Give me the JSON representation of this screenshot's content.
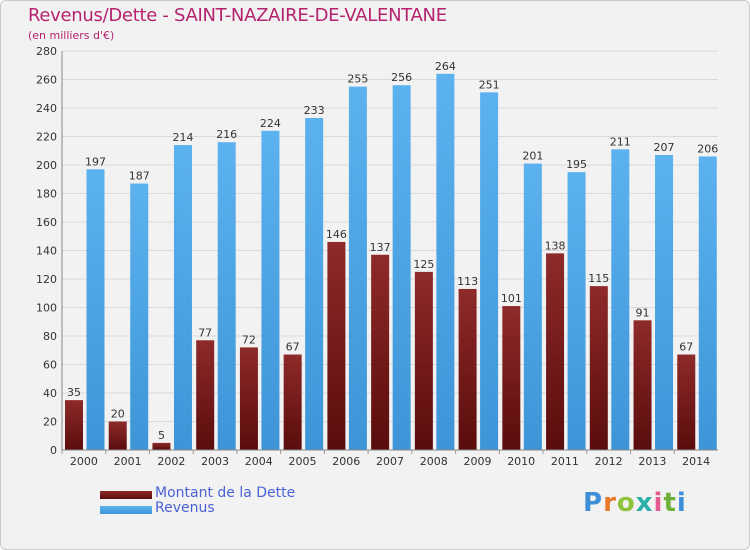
{
  "chart_data": {
    "type": "bar",
    "title": "Revenus/Dette - SAINT-NAZAIRE-DE-VALENTANE",
    "subtitle": "(en milliers d'€)",
    "categories": [
      "2000",
      "2001",
      "2002",
      "2003",
      "2004",
      "2005",
      "2006",
      "2007",
      "2008",
      "2009",
      "2010",
      "2011",
      "2012",
      "2013",
      "2014"
    ],
    "series": [
      {
        "name": "Montant de la Dette",
        "color": "#7a1a1a",
        "values": [
          35,
          20,
          5,
          77,
          72,
          67,
          146,
          137,
          125,
          113,
          101,
          138,
          115,
          91,
          67
        ]
      },
      {
        "name": "Revenus",
        "color": "#4ea6e6",
        "values": [
          197,
          187,
          214,
          216,
          224,
          233,
          255,
          256,
          264,
          251,
          201,
          195,
          211,
          207,
          206
        ]
      }
    ],
    "ylim": [
      0,
      280
    ],
    "yticks": [
      0,
      20,
      40,
      60,
      80,
      100,
      120,
      140,
      160,
      180,
      200,
      220,
      240,
      260,
      280
    ],
    "grid": true,
    "legend_position": "bottom-left"
  },
  "brand": {
    "text": "Proxiti"
  }
}
